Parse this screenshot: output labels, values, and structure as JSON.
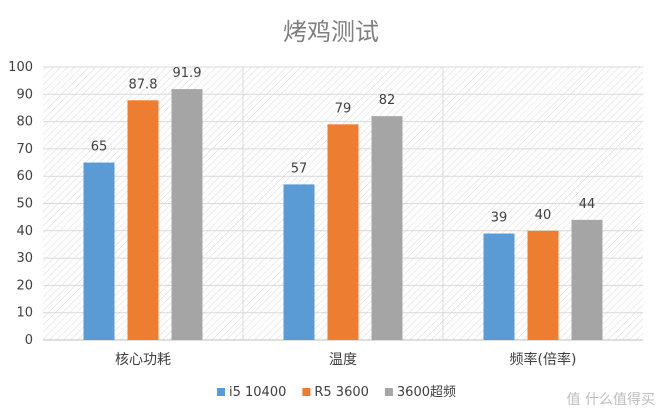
{
  "chart_data": {
    "type": "bar",
    "title": "烤鸡测试",
    "categories": [
      "核心功耗",
      "温度",
      "频率(倍率)"
    ],
    "series": [
      {
        "name": "i5 10400",
        "color": "#5b9bd5",
        "values": [
          65,
          57,
          39
        ]
      },
      {
        "name": "R5 3600",
        "color": "#ed7d31",
        "values": [
          87.8,
          79,
          40
        ]
      },
      {
        "name": "3600超频",
        "color": "#a5a5a5",
        "values": [
          91.9,
          82,
          44
        ]
      }
    ],
    "ylim": [
      0,
      100
    ],
    "yticks": [
      0,
      10,
      20,
      30,
      40,
      50,
      60,
      70,
      80,
      90,
      100
    ],
    "grid": true,
    "legend_position": "bottom",
    "data_labels": true
  },
  "watermark": "值 什么值得买"
}
